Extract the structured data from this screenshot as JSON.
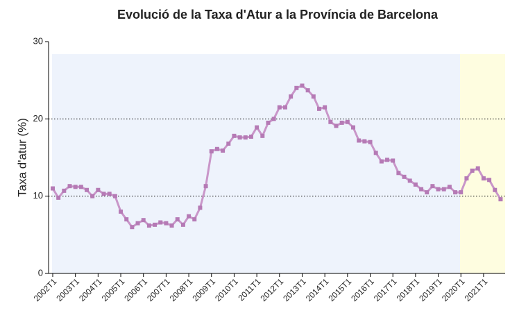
{
  "chart_data": {
    "type": "line",
    "title": "Evolució de la Taxa d'Atur a la Província de Barcelona",
    "y_label": "Taxa d'atur (%)",
    "categories": [
      "2002T1",
      null,
      null,
      null,
      "2003T1",
      null,
      null,
      null,
      "2004T1",
      null,
      null,
      null,
      "2005T1",
      null,
      null,
      null,
      "2006T1",
      null,
      null,
      null,
      "2007T1",
      null,
      null,
      null,
      "2008T1",
      null,
      null,
      null,
      "2009T1",
      null,
      null,
      null,
      "2010T1",
      null,
      null,
      null,
      "2011T1",
      null,
      null,
      null,
      "2012T1",
      null,
      null,
      null,
      "2013T1",
      null,
      null,
      null,
      "2014T1",
      null,
      null,
      null,
      "2015T1",
      null,
      null,
      null,
      "2016T1",
      null,
      null,
      null,
      "2017T1",
      null,
      null,
      null,
      "2018T1",
      null,
      null,
      null,
      "2019T1",
      null,
      null,
      null,
      "2020T1",
      null,
      null,
      null,
      "2021T1",
      null,
      null,
      null
    ],
    "series": [
      {
        "color": "#c996c9",
        "marker_color": "#b57ab5",
        "values": [
          11.0,
          9.8,
          10.7,
          11.3,
          11.2,
          11.2,
          10.8,
          10.0,
          10.8,
          10.3,
          10.3,
          10.0,
          8.0,
          7.0,
          6.0,
          6.5,
          6.9,
          6.2,
          6.3,
          6.6,
          6.5,
          6.2,
          7.0,
          6.3,
          7.4,
          7.0,
          8.5,
          11.3,
          15.8,
          16.1,
          15.9,
          16.8,
          17.8,
          17.6,
          17.6,
          17.7,
          18.9,
          17.8,
          19.5,
          20.0,
          21.5,
          21.5,
          22.9,
          24.0,
          24.3,
          23.7,
          22.9,
          21.3,
          21.5,
          19.6,
          19.1,
          19.5,
          19.6,
          18.9,
          17.2,
          17.1,
          17.0,
          15.6,
          14.5,
          14.7,
          14.6,
          13.0,
          12.5,
          12.0,
          11.5,
          10.9,
          10.5,
          11.3,
          10.9,
          10.9,
          11.2,
          10.5,
          10.5,
          12.3,
          13.3,
          13.6,
          12.3,
          12.1,
          10.8,
          9.6
        ]
      }
    ],
    "ylim": [
      0,
      30
    ],
    "yticks": [
      0,
      10,
      20,
      30
    ],
    "grid": true
  }
}
